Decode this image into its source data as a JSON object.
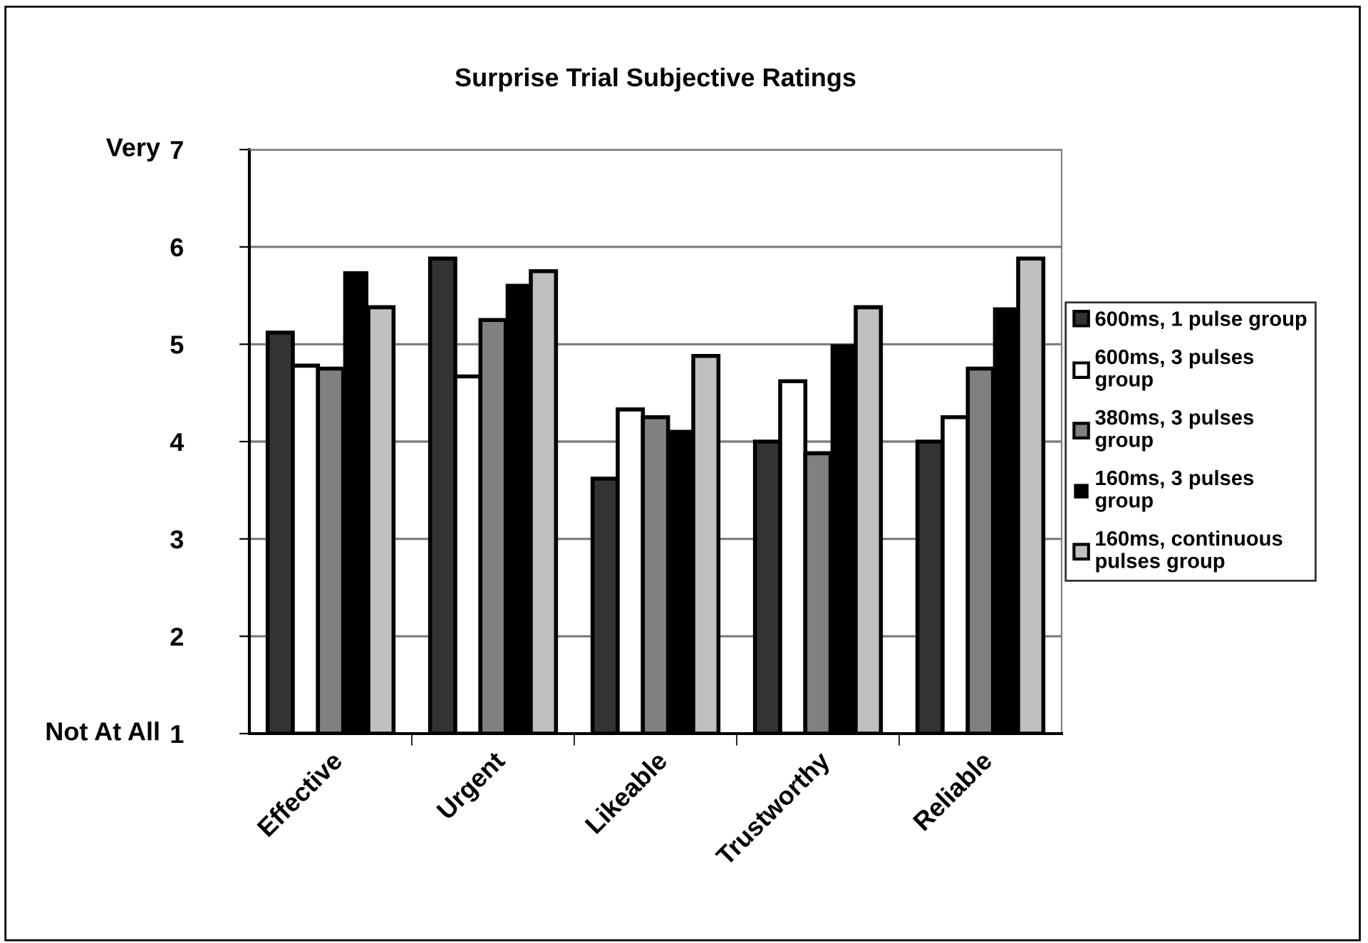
{
  "chart_data": {
    "type": "bar",
    "title": "Surprise Trial Subjective Ratings",
    "categories": [
      "Effective",
      "Urgent",
      "Likeable",
      "Trustworthy",
      "Reliable"
    ],
    "series": [
      {
        "name": "600ms, 1 pulse group",
        "color": "#333333",
        "values": [
          5.12,
          5.88,
          3.62,
          4.0,
          4.0
        ]
      },
      {
        "name": "600ms, 3 pulses\ngroup",
        "color": "#ffffff",
        "values": [
          4.78,
          4.67,
          4.33,
          4.62,
          4.25
        ]
      },
      {
        "name": "380ms, 3 pulses\ngroup",
        "color": "#808080",
        "values": [
          4.75,
          5.25,
          4.25,
          3.88,
          4.75
        ]
      },
      {
        "name": "160ms, 3 pulses\ngroup",
        "color": "#000000",
        "values": [
          5.75,
          5.62,
          4.12,
          5.0,
          5.38
        ]
      },
      {
        "name": "160ms, continuous\npulses group",
        "color": "#c0c0c0",
        "values": [
          5.38,
          5.75,
          4.88,
          5.38,
          5.88
        ]
      }
    ],
    "ylim": [
      1,
      7
    ],
    "yticks": [
      1,
      2,
      3,
      4,
      5,
      6,
      7
    ],
    "grid": "y",
    "legend": "right",
    "annotations": [
      "Very",
      "Not At All"
    ]
  }
}
